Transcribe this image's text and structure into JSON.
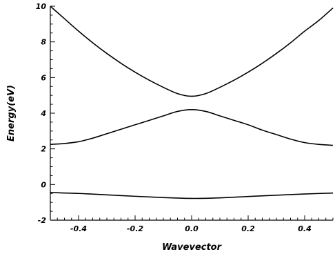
{
  "chart_data": {
    "type": "line",
    "title": "",
    "xlabel": "Wavevector",
    "ylabel": "Energy(eV)",
    "xlim": [
      -0.5,
      0.5
    ],
    "ylim": [
      -2,
      10
    ],
    "x_ticks": [
      -0.4,
      -0.2,
      0.0,
      0.2,
      0.4
    ],
    "x_tick_labels": [
      "-0.4",
      "-0.2",
      "0.0",
      "0.2",
      "0.4"
    ],
    "y_ticks": [
      -2,
      0,
      2,
      4,
      6,
      8,
      10
    ],
    "y_tick_labels": [
      "-2",
      "0",
      "2",
      "4",
      "6",
      "8",
      "10"
    ],
    "grid": false,
    "legend": "none",
    "series": [
      {
        "points": [
          [
            -0.5,
            10.0
          ],
          [
            -0.45,
            9.3
          ],
          [
            -0.4,
            8.6
          ],
          [
            -0.35,
            7.95
          ],
          [
            -0.3,
            7.35
          ],
          [
            -0.25,
            6.8
          ],
          [
            -0.2,
            6.3
          ],
          [
            -0.15,
            5.85
          ],
          [
            -0.1,
            5.45
          ],
          [
            -0.05,
            5.1
          ],
          [
            0.0,
            4.95
          ],
          [
            0.05,
            5.1
          ],
          [
            0.1,
            5.45
          ],
          [
            0.15,
            5.85
          ],
          [
            0.2,
            6.3
          ],
          [
            0.25,
            6.8
          ],
          [
            0.3,
            7.35
          ],
          [
            0.35,
            7.95
          ],
          [
            0.4,
            8.6
          ],
          [
            0.45,
            9.2
          ],
          [
            0.5,
            9.9
          ]
        ]
      },
      {
        "points": [
          [
            -0.5,
            2.25
          ],
          [
            -0.45,
            2.3
          ],
          [
            -0.4,
            2.4
          ],
          [
            -0.35,
            2.6
          ],
          [
            -0.3,
            2.85
          ],
          [
            -0.25,
            3.1
          ],
          [
            -0.2,
            3.35
          ],
          [
            -0.15,
            3.6
          ],
          [
            -0.1,
            3.85
          ],
          [
            -0.05,
            4.1
          ],
          [
            0.0,
            4.2
          ],
          [
            0.05,
            4.1
          ],
          [
            0.1,
            3.85
          ],
          [
            0.15,
            3.6
          ],
          [
            0.2,
            3.35
          ],
          [
            0.25,
            3.05
          ],
          [
            0.3,
            2.8
          ],
          [
            0.35,
            2.55
          ],
          [
            0.4,
            2.35
          ],
          [
            0.45,
            2.25
          ],
          [
            0.5,
            2.2
          ]
        ]
      },
      {
        "points": [
          [
            -0.5,
            -0.45
          ],
          [
            -0.4,
            -0.5
          ],
          [
            -0.3,
            -0.58
          ],
          [
            -0.2,
            -0.66
          ],
          [
            -0.1,
            -0.73
          ],
          [
            0.0,
            -0.78
          ],
          [
            0.1,
            -0.75
          ],
          [
            0.2,
            -0.67
          ],
          [
            0.3,
            -0.6
          ],
          [
            0.4,
            -0.53
          ],
          [
            0.5,
            -0.48
          ]
        ]
      }
    ],
    "colors": {
      "line": "#000000",
      "axis": "#000000",
      "background": "#ffffff"
    }
  }
}
